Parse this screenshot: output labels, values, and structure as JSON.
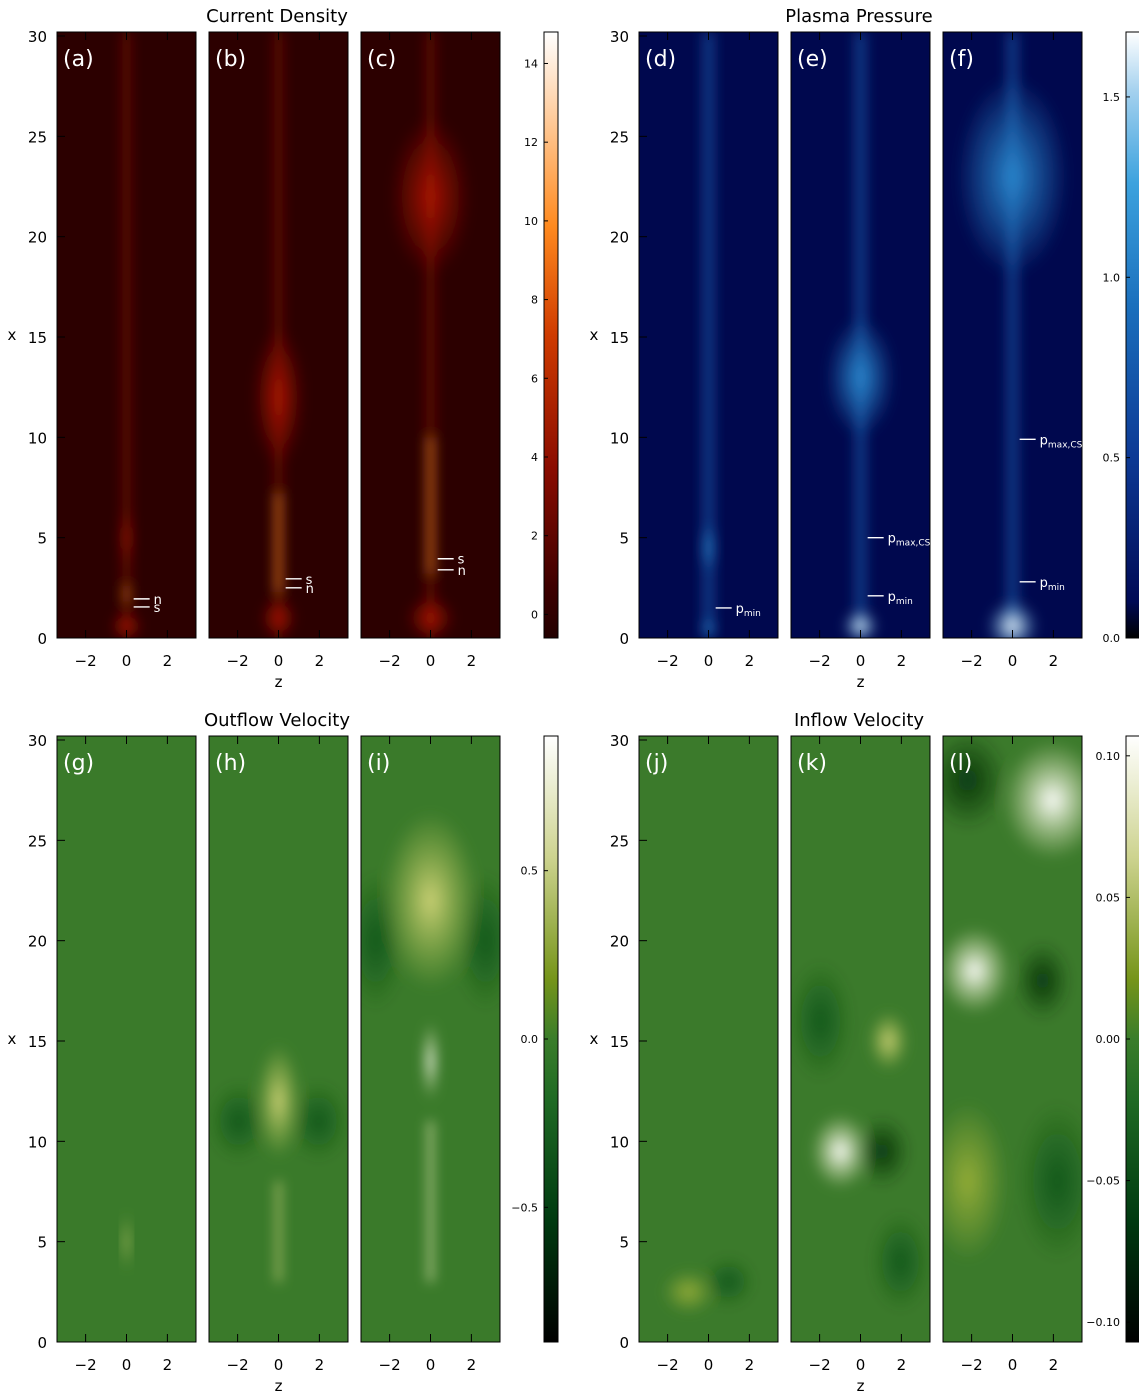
{
  "figure": {
    "width": 1139,
    "height": 1391
  },
  "chart_data": [
    {
      "type": "heatmap",
      "title": "Current Density",
      "panel_labels": [
        "(a)",
        "(b)",
        "(c)"
      ],
      "xlabel": "z",
      "ylabel": "x",
      "xlim": [
        -3.4,
        3.4
      ],
      "ylim": [
        0,
        30.2
      ],
      "xticks": [
        -2,
        0,
        2
      ],
      "yticks": [
        0,
        5,
        10,
        15,
        20,
        25,
        30
      ],
      "colormap": "red-temperature",
      "colorbar": {
        "min": -0.6,
        "max": 14.8,
        "ticks": [
          0,
          2,
          4,
          6,
          8,
          10,
          12,
          14
        ]
      },
      "annotations": [
        [
          {
            "text": "n",
            "y": 1.95
          },
          {
            "text": "s",
            "y": 1.55
          }
        ],
        [
          {
            "text": "s",
            "y": 2.95
          },
          {
            "text": "n",
            "y": 2.5
          }
        ],
        [
          {
            "text": "s",
            "y": 3.95
          },
          {
            "text": "n",
            "y": 3.4
          }
        ]
      ]
    },
    {
      "type": "heatmap",
      "title": "Plasma Pressure",
      "panel_labels": [
        "(d)",
        "(e)",
        "(f)"
      ],
      "xlabel": "z",
      "ylabel": "x",
      "xlim": [
        -3.4,
        3.4
      ],
      "ylim": [
        0,
        30.2
      ],
      "xticks": [
        -2,
        0,
        2
      ],
      "yticks": [
        0,
        5,
        10,
        15,
        20,
        25,
        30
      ],
      "colormap": "blue",
      "colorbar": {
        "min": 0.0,
        "max": 1.68,
        "ticks": [
          0.0,
          0.5,
          1.0,
          1.5
        ],
        "ticklabels": [
          "0.0",
          "0.5",
          "1.0",
          "1.5"
        ]
      },
      "annotations": [
        [
          {
            "text": "p",
            "sub": "min",
            "y": 1.5
          }
        ],
        [
          {
            "text": "p",
            "sub": "max,CS",
            "y": 5.0
          },
          {
            "text": "p",
            "sub": "min",
            "y": 2.1
          }
        ],
        [
          {
            "text": "p",
            "sub": "max,CS",
            "y": 9.9
          },
          {
            "text": "p",
            "sub": "min",
            "y": 2.8
          }
        ]
      ]
    },
    {
      "type": "heatmap",
      "title": "Outflow Velocity",
      "panel_labels": [
        "(g)",
        "(h)",
        "(i)"
      ],
      "xlabel": "z",
      "ylabel": "x",
      "xlim": [
        -3.4,
        3.4
      ],
      "ylim": [
        0,
        30.2
      ],
      "xticks": [
        -2,
        0,
        2
      ],
      "yticks": [
        0,
        5,
        10,
        15,
        20,
        25,
        30
      ],
      "colormap": "green-yellow",
      "colorbar": {
        "min": -0.9,
        "max": 0.9,
        "ticks": [
          -0.5,
          0.0,
          0.5
        ],
        "ticklabels": [
          "−0.5",
          "0.0",
          "0.5"
        ]
      },
      "annotations": [
        [],
        [],
        []
      ]
    },
    {
      "type": "heatmap",
      "title": "Inflow Velocity",
      "panel_labels": [
        "(j)",
        "(k)",
        "(l)"
      ],
      "xlabel": "z",
      "ylabel": "x",
      "xlim": [
        -3.4,
        3.4
      ],
      "ylim": [
        0,
        30.2
      ],
      "xticks": [
        -2,
        0,
        2
      ],
      "yticks": [
        0,
        5,
        10,
        15,
        20,
        25,
        30
      ],
      "colormap": "green-yellow",
      "colorbar": {
        "min": -0.107,
        "max": 0.107,
        "ticks": [
          -0.1,
          -0.05,
          0.0,
          0.05,
          0.1
        ],
        "ticklabels": [
          "−0.10",
          "−0.05",
          "0.00",
          "0.05",
          "0.10"
        ]
      },
      "annotations": [
        [],
        [],
        []
      ]
    }
  ]
}
